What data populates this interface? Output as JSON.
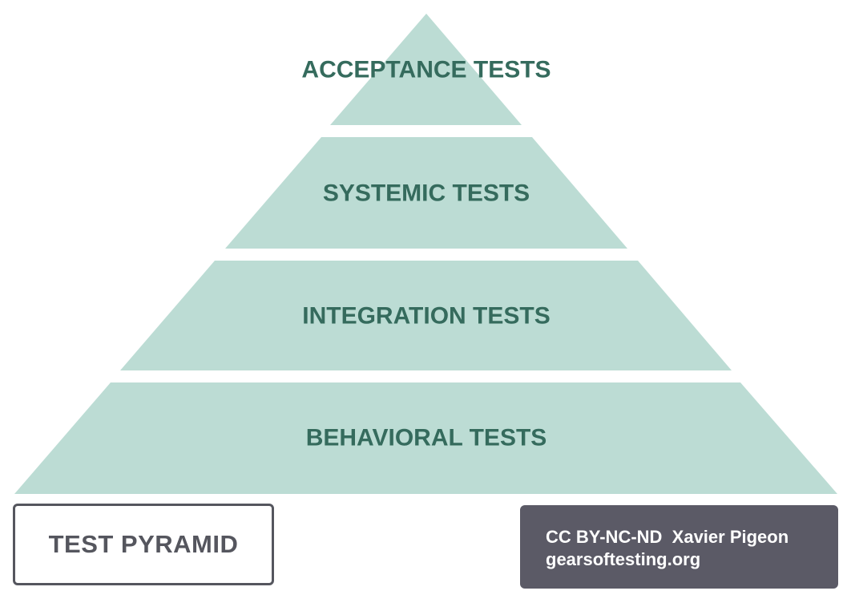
{
  "pyramid": {
    "tiers": [
      {
        "label": "ACCEPTANCE TESTS"
      },
      {
        "label": "SYSTEMIC TESTS"
      },
      {
        "label": "INTEGRATION TESTS"
      },
      {
        "label": "BEHAVIORAL TESTS"
      }
    ],
    "fill_color": "#bcdcd4",
    "label_color": "#356b5d"
  },
  "title": {
    "text": "TEST PYRAMID"
  },
  "credit": {
    "line1": "CC BY-NC-ND  Xavier Pigeon",
    "line2": "gearsoftesting.org"
  }
}
